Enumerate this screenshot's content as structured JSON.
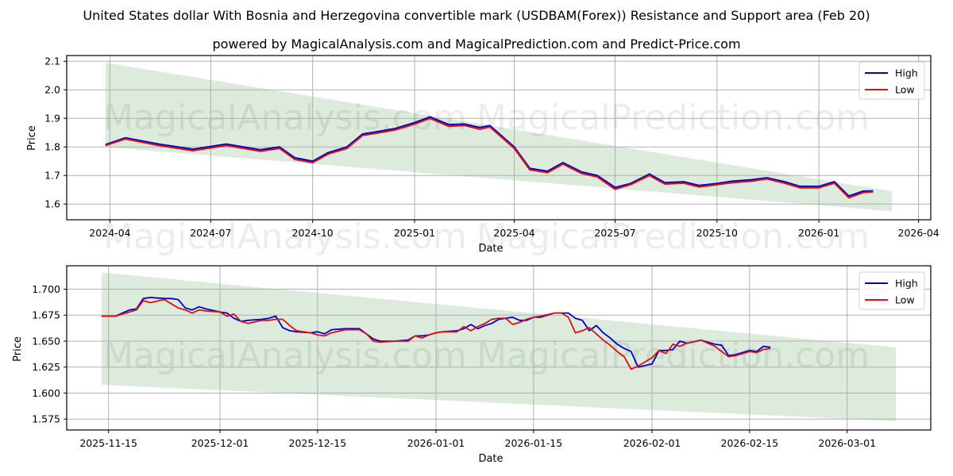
{
  "header": {
    "title": "United States dollar With Bosnia and Herzegovina convertible mark (USDBAM(Forex)) Resistance and Support area (Feb 20)",
    "subtitle": "powered by MagicalAnalysis.com and MagicalPrediction.com and Predict-Price.com"
  },
  "watermarks": [
    "MagicalAnalysis.com",
    "MagicalPrediction.com"
  ],
  "colors": {
    "high": "#0000cc",
    "low": "#dd1111",
    "band": "#dcebdc"
  },
  "chart_data": [
    {
      "type": "line",
      "title": "Long-term",
      "xlabel": "Date",
      "ylabel": "Price",
      "ylim": [
        1.545,
        2.12
      ],
      "yticks": [
        "1.6",
        "1.7",
        "1.8",
        "1.9",
        "2.0",
        "2.1"
      ],
      "xticks": [
        "2024-04",
        "2024-07",
        "2024-10",
        "2025-01",
        "2025-04",
        "2025-07",
        "2025-10",
        "2026-01",
        "2026-04"
      ],
      "legend": [
        "High",
        "Low"
      ],
      "legend_position": "upper right",
      "grid": true,
      "band": {
        "start": "2024-03-28",
        "end": "2026-03-08",
        "upper": [
          2.095,
          1.645
        ],
        "lower": [
          1.8,
          1.575
        ]
      },
      "x": [
        "2024-03-28",
        "2024-04-15",
        "2024-05-15",
        "2024-06-15",
        "2024-07-15",
        "2024-08-15",
        "2024-09-01",
        "2024-09-15",
        "2024-10-01",
        "2024-10-15",
        "2024-11-01",
        "2024-11-15",
        "2024-12-01",
        "2024-12-15",
        "2025-01-01",
        "2025-01-15",
        "2025-02-01",
        "2025-02-15",
        "2025-03-01",
        "2025-03-10",
        "2025-04-01",
        "2025-04-15",
        "2025-05-01",
        "2025-05-15",
        "2025-06-01",
        "2025-06-15",
        "2025-07-01",
        "2025-07-15",
        "2025-08-01",
        "2025-08-15",
        "2025-09-01",
        "2025-09-15",
        "2025-10-01",
        "2025-10-15",
        "2025-11-01",
        "2025-11-15",
        "2025-12-01",
        "2025-12-15",
        "2026-01-01",
        "2026-01-15",
        "2026-01-28",
        "2026-02-10",
        "2026-02-19"
      ],
      "series": [
        {
          "name": "High",
          "values": [
            1.808,
            1.832,
            1.81,
            1.792,
            1.81,
            1.79,
            1.8,
            1.762,
            1.75,
            1.78,
            1.8,
            1.845,
            1.855,
            1.865,
            1.885,
            1.905,
            1.878,
            1.88,
            1.868,
            1.875,
            1.8,
            1.725,
            1.715,
            1.745,
            1.712,
            1.7,
            1.658,
            1.672,
            1.705,
            1.675,
            1.678,
            1.665,
            1.672,
            1.68,
            1.685,
            1.692,
            1.678,
            1.662,
            1.662,
            1.678,
            1.628,
            1.645,
            1.646
          ]
        },
        {
          "name": "Low",
          "values": [
            1.805,
            1.828,
            1.805,
            1.787,
            1.805,
            1.785,
            1.795,
            1.756,
            1.745,
            1.775,
            1.795,
            1.84,
            1.85,
            1.86,
            1.88,
            1.9,
            1.872,
            1.875,
            1.862,
            1.87,
            1.795,
            1.72,
            1.71,
            1.74,
            1.707,
            1.695,
            1.652,
            1.668,
            1.7,
            1.67,
            1.673,
            1.66,
            1.668,
            1.675,
            1.68,
            1.688,
            1.673,
            1.657,
            1.657,
            1.673,
            1.622,
            1.64,
            1.643
          ]
        }
      ]
    },
    {
      "type": "line",
      "title": "Short-term",
      "xlabel": "Date",
      "ylabel": "Price",
      "ylim": [
        1.5645,
        1.7225
      ],
      "yticks": [
        "1.575",
        "1.600",
        "1.625",
        "1.650",
        "1.675",
        "1.700"
      ],
      "xticks": [
        "2025-11-15",
        "2025-12-01",
        "2025-12-15",
        "2026-01-01",
        "2026-01-15",
        "2026-02-01",
        "2026-02-15",
        "2026-03-01"
      ],
      "legend": [
        "High",
        "Low"
      ],
      "legend_position": "upper right",
      "grid": true,
      "band": {
        "start": "2025-11-14",
        "end": "2026-03-08",
        "upper": [
          1.716,
          1.644
        ],
        "lower": [
          1.608,
          1.573
        ]
      },
      "x": [
        "2025-11-14",
        "2025-11-15",
        "2025-11-16",
        "2025-11-17",
        "2025-11-18",
        "2025-11-19",
        "2025-11-20",
        "2025-11-21",
        "2025-11-23",
        "2025-11-24",
        "2025-11-25",
        "2025-11-26",
        "2025-11-27",
        "2025-11-28",
        "2025-11-29",
        "2025-12-01",
        "2025-12-02",
        "2025-12-03",
        "2025-12-04",
        "2025-12-05",
        "2025-12-07",
        "2025-12-08",
        "2025-12-09",
        "2025-12-10",
        "2025-12-11",
        "2025-12-12",
        "2025-12-14",
        "2025-12-15",
        "2025-12-16",
        "2025-12-17",
        "2025-12-19",
        "2025-12-21",
        "2025-12-22",
        "2025-12-23",
        "2025-12-24",
        "2025-12-26",
        "2025-12-28",
        "2025-12-29",
        "2025-12-30",
        "2025-12-31",
        "2026-01-01",
        "2026-01-02",
        "2026-01-04",
        "2026-01-05",
        "2026-01-06",
        "2026-01-07",
        "2026-01-08",
        "2026-01-09",
        "2026-01-10",
        "2026-01-11",
        "2026-01-12",
        "2026-01-13",
        "2026-01-14",
        "2026-01-15",
        "2026-01-16",
        "2026-01-18",
        "2026-01-19",
        "2026-01-20",
        "2026-01-21",
        "2026-01-22",
        "2026-01-23",
        "2026-01-24",
        "2026-01-25",
        "2026-01-26",
        "2026-01-27",
        "2026-01-28",
        "2026-01-29",
        "2026-01-30",
        "2026-02-01",
        "2026-02-02",
        "2026-02-03",
        "2026-02-04",
        "2026-02-05",
        "2026-02-06",
        "2026-02-08",
        "2026-02-09",
        "2026-02-10",
        "2026-02-11",
        "2026-02-12",
        "2026-02-13",
        "2026-02-15",
        "2026-02-16",
        "2026-02-17",
        "2026-02-18"
      ],
      "series": [
        {
          "name": "High",
          "values": [
            1.674,
            1.674,
            1.674,
            1.677,
            1.68,
            1.681,
            1.691,
            1.692,
            1.691,
            1.691,
            1.69,
            1.682,
            1.68,
            1.683,
            1.681,
            1.678,
            1.677,
            1.672,
            1.669,
            1.67,
            1.671,
            1.672,
            1.674,
            1.663,
            1.66,
            1.659,
            1.658,
            1.659,
            1.657,
            1.661,
            1.662,
            1.662,
            1.657,
            1.652,
            1.65,
            1.65,
            1.651,
            1.655,
            1.655,
            1.656,
            1.658,
            1.659,
            1.66,
            1.662,
            1.666,
            1.662,
            1.665,
            1.667,
            1.671,
            1.672,
            1.673,
            1.67,
            1.67,
            1.673,
            1.673,
            1.677,
            1.677,
            1.677,
            1.672,
            1.67,
            1.66,
            1.665,
            1.658,
            1.653,
            1.647,
            1.643,
            1.64,
            1.625,
            1.628,
            1.641,
            1.641,
            1.642,
            1.65,
            1.648,
            1.651,
            1.649,
            1.647,
            1.646,
            1.636,
            1.637,
            1.641,
            1.64,
            1.645,
            1.644
          ]
        },
        {
          "name": "Low",
          "values": [
            1.674,
            1.674,
            1.674,
            1.676,
            1.678,
            1.68,
            1.689,
            1.687,
            1.69,
            1.686,
            1.682,
            1.68,
            1.677,
            1.68,
            1.679,
            1.678,
            1.674,
            1.676,
            1.669,
            1.667,
            1.67,
            1.67,
            1.671,
            1.671,
            1.665,
            1.66,
            1.658,
            1.656,
            1.655,
            1.658,
            1.661,
            1.661,
            1.657,
            1.65,
            1.649,
            1.65,
            1.65,
            1.655,
            1.653,
            1.656,
            1.658,
            1.659,
            1.659,
            1.664,
            1.66,
            1.664,
            1.667,
            1.671,
            1.672,
            1.672,
            1.666,
            1.668,
            1.671,
            1.673,
            1.674,
            1.677,
            1.677,
            1.673,
            1.658,
            1.66,
            1.663,
            1.657,
            1.651,
            1.646,
            1.64,
            1.635,
            1.623,
            1.626,
            1.634,
            1.641,
            1.638,
            1.647,
            1.645,
            1.648,
            1.651,
            1.648,
            1.645,
            1.64,
            1.635,
            1.636,
            1.64,
            1.639,
            1.642,
            1.643
          ]
        }
      ]
    }
  ]
}
